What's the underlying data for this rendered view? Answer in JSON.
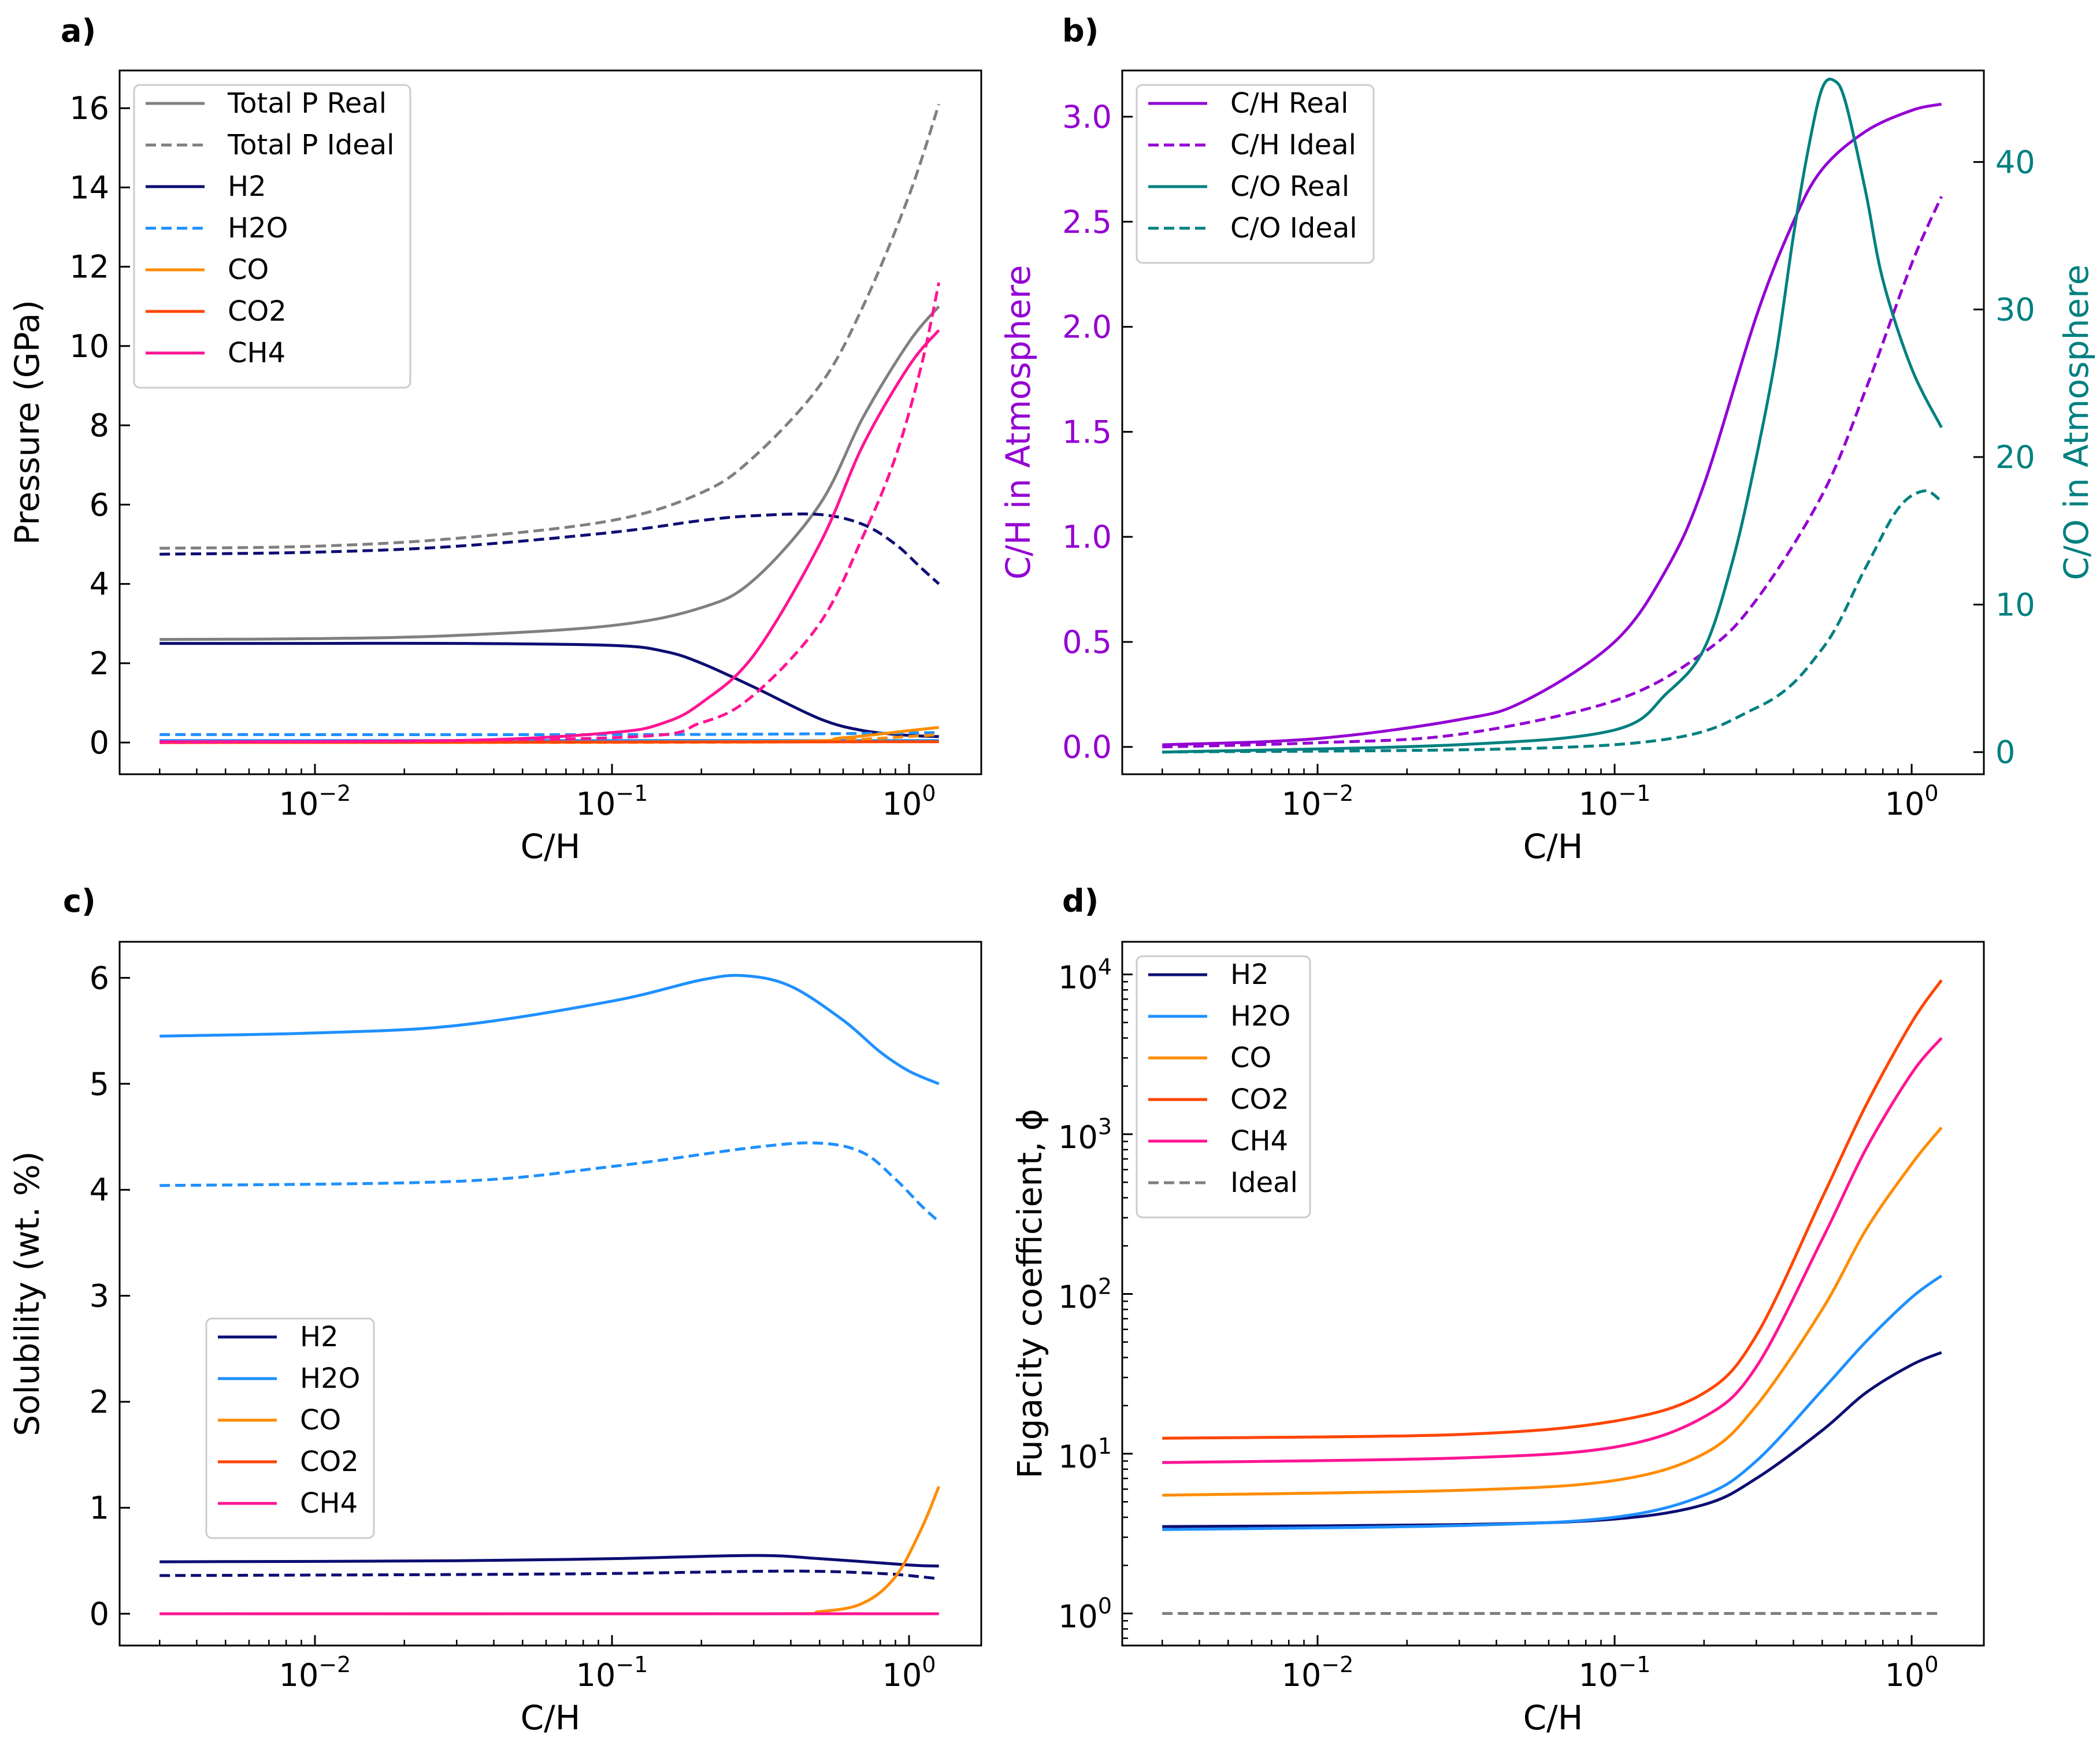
{
  "figure": {
    "panel_labels": [
      "a)",
      "b)",
      "c)",
      "d)"
    ]
  },
  "colors": {
    "total": "#808080",
    "H2": "#0d0d73",
    "H2O": "#1e90ff",
    "CO": "#ff8c00",
    "CO2": "#ff4500",
    "CH4": "#ff1493",
    "ch_ratio": "#9400d3",
    "co_ratio": "#008080",
    "ideal": "#808080"
  },
  "chart_data": [
    {
      "panel": "a)",
      "type": "line",
      "xscale": "log",
      "xlabel": "C/H",
      "ylabel": "Pressure (GPa)",
      "xlim": [
        0.0022,
        1.75
      ],
      "ylim": [
        -0.8,
        16.95
      ],
      "xticks": [
        {
          "v": 0.01,
          "b": "10",
          "e": "−2"
        },
        {
          "v": 0.1,
          "b": "10",
          "e": "−1"
        },
        {
          "v": 1,
          "b": "10",
          "e": "0"
        }
      ],
      "yticks": [
        0,
        2,
        4,
        6,
        8,
        10,
        12,
        14,
        16
      ],
      "legend": {
        "position": "upper-left",
        "entries": [
          "Total P Real",
          "Total P Ideal",
          "H2",
          "H2O",
          "CO",
          "CO2",
          "CH4"
        ]
      },
      "series": [
        {
          "name": "Total P Real",
          "color_key": "total",
          "dash": false,
          "x": [
            0.003,
            0.01,
            0.03,
            0.1,
            0.2,
            0.3,
            0.5,
            0.7,
            1.0,
            1.26
          ],
          "y": [
            2.6,
            2.62,
            2.7,
            2.95,
            3.4,
            4.1,
            6.0,
            8.2,
            10.1,
            11.0
          ]
        },
        {
          "name": "Total P Ideal",
          "color_key": "total",
          "dash": true,
          "x": [
            0.003,
            0.01,
            0.03,
            0.1,
            0.2,
            0.3,
            0.5,
            0.7,
            1.0,
            1.26
          ],
          "y": [
            4.9,
            4.95,
            5.15,
            5.6,
            6.3,
            7.2,
            9.0,
            11.0,
            13.8,
            16.1
          ]
        },
        {
          "name": "H2 Real",
          "color_key": "H2",
          "dash": false,
          "x": [
            0.003,
            0.01,
            0.03,
            0.1,
            0.15,
            0.2,
            0.3,
            0.5,
            0.7,
            1.0,
            1.26
          ],
          "y": [
            2.5,
            2.5,
            2.5,
            2.45,
            2.3,
            2.0,
            1.4,
            0.6,
            0.3,
            0.18,
            0.15
          ]
        },
        {
          "name": "H2 Ideal",
          "color_key": "H2",
          "dash": true,
          "x": [
            0.003,
            0.01,
            0.03,
            0.1,
            0.2,
            0.3,
            0.5,
            0.7,
            0.9,
            1.1,
            1.26
          ],
          "y": [
            4.75,
            4.8,
            4.95,
            5.3,
            5.6,
            5.72,
            5.75,
            5.5,
            5.0,
            4.4,
            4.0
          ]
        },
        {
          "name": "H2O Ideal",
          "color_key": "H2O",
          "dash": true,
          "x": [
            0.003,
            0.1,
            0.5,
            1.26
          ],
          "y": [
            0.2,
            0.2,
            0.22,
            0.25
          ]
        },
        {
          "name": "H2O Real",
          "color_key": "H2O",
          "dash": false,
          "x": [
            0.003,
            0.1,
            1.26
          ],
          "y": [
            0.05,
            0.05,
            0.05
          ]
        },
        {
          "name": "CO Real",
          "color_key": "CO",
          "dash": false,
          "x": [
            0.003,
            0.3,
            0.6,
            1.0,
            1.26
          ],
          "y": [
            0.0,
            0.02,
            0.12,
            0.3,
            0.38
          ]
        },
        {
          "name": "CO Ideal",
          "color_key": "CO",
          "dash": true,
          "x": [
            0.003,
            0.3,
            0.6,
            1.0,
            1.26
          ],
          "y": [
            0.0,
            0.01,
            0.06,
            0.15,
            0.2
          ]
        },
        {
          "name": "CO2 Real",
          "color_key": "CO2",
          "dash": false,
          "x": [
            0.003,
            1.26
          ],
          "y": [
            0.0,
            0.02
          ]
        },
        {
          "name": "CH4 Real",
          "color_key": "CH4",
          "dash": false,
          "x": [
            0.003,
            0.03,
            0.1,
            0.15,
            0.2,
            0.3,
            0.5,
            0.7,
            1.0,
            1.26
          ],
          "y": [
            0.02,
            0.05,
            0.25,
            0.5,
            1.0,
            2.2,
            5.0,
            7.5,
            9.5,
            10.4
          ]
        },
        {
          "name": "CH4 Ideal",
          "color_key": "CH4",
          "dash": true,
          "x": [
            0.003,
            0.1,
            0.2,
            0.3,
            0.5,
            0.7,
            0.9,
            1.1,
            1.26
          ],
          "y": [
            0.0,
            0.12,
            0.5,
            1.2,
            3.0,
            5.2,
            7.2,
            9.5,
            11.6
          ]
        }
      ]
    },
    {
      "panel": "b)",
      "type": "line",
      "xscale": "log",
      "xlabel": "C/H",
      "ylabel": "C/H in Atmosphere",
      "ylabel_right": "C/O in Atmosphere",
      "xlim": [
        0.0022,
        1.75
      ],
      "ylim": [
        -0.13,
        3.22
      ],
      "ylim_right": [
        -1.5,
        46.2
      ],
      "xticks": [
        {
          "v": 0.01,
          "b": "10",
          "e": "−2"
        },
        {
          "v": 0.1,
          "b": "10",
          "e": "−1"
        },
        {
          "v": 1,
          "b": "10",
          "e": "0"
        }
      ],
      "yticks": [
        "0.0",
        "0.5",
        "1.0",
        "1.5",
        "2.0",
        "2.5",
        "3.0"
      ],
      "yticks_right": [
        0,
        10,
        20,
        30,
        40
      ],
      "legend": {
        "position": "upper-left",
        "entries": [
          "C/H Real",
          "C/H Ideal",
          "C/O Real",
          "C/O Ideal"
        ]
      },
      "series": [
        {
          "name": "C/H Real",
          "axis": "left",
          "color_key": "ch_ratio",
          "dash": false,
          "x": [
            0.003,
            0.01,
            0.03,
            0.05,
            0.1,
            0.15,
            0.2,
            0.3,
            0.4,
            0.5,
            0.7,
            1.0,
            1.26
          ],
          "y": [
            0.01,
            0.04,
            0.13,
            0.22,
            0.5,
            0.85,
            1.25,
            2.05,
            2.5,
            2.75,
            2.93,
            3.03,
            3.06
          ]
        },
        {
          "name": "C/H Ideal",
          "axis": "left",
          "color_key": "ch_ratio",
          "dash": true,
          "x": [
            0.003,
            0.01,
            0.03,
            0.1,
            0.2,
            0.3,
            0.5,
            0.7,
            1.0,
            1.26
          ],
          "y": [
            0.0,
            0.02,
            0.06,
            0.22,
            0.45,
            0.7,
            1.2,
            1.7,
            2.3,
            2.62
          ]
        },
        {
          "name": "C/O Real",
          "axis": "right",
          "color_key": "co_ratio",
          "dash": false,
          "x": [
            0.003,
            0.03,
            0.1,
            0.15,
            0.2,
            0.25,
            0.3,
            0.35,
            0.4,
            0.45,
            0.5,
            0.55,
            0.6,
            0.7,
            0.8,
            1.0,
            1.26
          ],
          "y": [
            0.0,
            0.5,
            1.5,
            4.0,
            7.0,
            13.0,
            20.0,
            27.0,
            35.0,
            41.0,
            45.0,
            45.5,
            44.0,
            38.0,
            32.0,
            26.0,
            22.0
          ]
        },
        {
          "name": "C/O Ideal",
          "axis": "right",
          "color_key": "co_ratio",
          "dash": true,
          "x": [
            0.003,
            0.1,
            0.3,
            0.5,
            0.7,
            0.9,
            1.1,
            1.26
          ],
          "y": [
            0.0,
            0.5,
            3.0,
            7.0,
            12.5,
            16.5,
            17.7,
            17.0
          ]
        }
      ]
    },
    {
      "panel": "c)",
      "type": "line",
      "xscale": "log",
      "xlabel": "C/H",
      "ylabel": "Solubility (wt. %)",
      "xlim": [
        0.0022,
        1.75
      ],
      "ylim": [
        -0.3,
        6.34
      ],
      "xticks": [
        {
          "v": 0.01,
          "b": "10",
          "e": "−2"
        },
        {
          "v": 0.1,
          "b": "10",
          "e": "−1"
        },
        {
          "v": 1,
          "b": "10",
          "e": "0"
        }
      ],
      "yticks": [
        0,
        1,
        2,
        3,
        4,
        5,
        6
      ],
      "legend": {
        "position": "lower-left",
        "entries": [
          "H2",
          "H2O",
          "CO",
          "CO2",
          "CH4"
        ]
      },
      "series": [
        {
          "name": "H2O Real",
          "color_key": "H2O",
          "dash": false,
          "x": [
            0.003,
            0.01,
            0.03,
            0.1,
            0.2,
            0.28,
            0.4,
            0.6,
            0.8,
            1.0,
            1.26
          ],
          "y": [
            5.45,
            5.48,
            5.55,
            5.78,
            5.98,
            6.02,
            5.92,
            5.6,
            5.3,
            5.12,
            5.0
          ]
        },
        {
          "name": "H2O Ideal",
          "color_key": "H2O",
          "dash": true,
          "x": [
            0.003,
            0.03,
            0.1,
            0.3,
            0.5,
            0.7,
            0.9,
            1.1,
            1.26
          ],
          "y": [
            4.04,
            4.08,
            4.22,
            4.4,
            4.44,
            4.35,
            4.1,
            3.85,
            3.7
          ]
        },
        {
          "name": "H2 Real",
          "color_key": "H2",
          "dash": false,
          "x": [
            0.003,
            0.03,
            0.1,
            0.3,
            0.5,
            1.0,
            1.26
          ],
          "y": [
            0.49,
            0.5,
            0.52,
            0.55,
            0.52,
            0.46,
            0.45
          ]
        },
        {
          "name": "H2 Ideal",
          "color_key": "H2",
          "dash": true,
          "x": [
            0.003,
            0.03,
            0.1,
            0.3,
            0.5,
            0.8,
            1.0,
            1.26
          ],
          "y": [
            0.36,
            0.37,
            0.38,
            0.4,
            0.4,
            0.38,
            0.36,
            0.33
          ]
        },
        {
          "name": "CO Real",
          "color_key": "CO",
          "dash": false,
          "x": [
            0.003,
            0.3,
            0.5,
            0.7,
            0.9,
            1.1,
            1.26
          ],
          "y": [
            0.0,
            0.0,
            0.02,
            0.1,
            0.35,
            0.8,
            1.2
          ]
        },
        {
          "name": "CO2 Real",
          "color_key": "CO2",
          "dash": false,
          "x": [
            0.003,
            1.26
          ],
          "y": [
            0.0,
            0.0
          ]
        },
        {
          "name": "CH4 Real",
          "color_key": "CH4",
          "dash": false,
          "x": [
            0.003,
            1.26
          ],
          "y": [
            0.0,
            0.0
          ]
        }
      ]
    },
    {
      "panel": "d)",
      "type": "line",
      "xscale": "log",
      "yscale": "log",
      "xlabel": "C/H",
      "ylabel": "Fugacity coefficient, ϕ",
      "xlim": [
        0.0022,
        1.75
      ],
      "ylim": [
        0.63,
        16000
      ],
      "xticks": [
        {
          "v": 0.01,
          "b": "10",
          "e": "−2"
        },
        {
          "v": 0.1,
          "b": "10",
          "e": "−1"
        },
        {
          "v": 1,
          "b": "10",
          "e": "0"
        }
      ],
      "yticks": [
        {
          "v": 1,
          "b": "10",
          "e": "0"
        },
        {
          "v": 10,
          "b": "10",
          "e": "1"
        },
        {
          "v": 100,
          "b": "10",
          "e": "2"
        },
        {
          "v": 1000,
          "b": "10",
          "e": "3"
        },
        {
          "v": 10000,
          "b": "10",
          "e": "4"
        }
      ],
      "legend": {
        "position": "upper-left",
        "entries": [
          "H2",
          "H2O",
          "CO",
          "CO2",
          "CH4",
          "Ideal"
        ]
      },
      "series": [
        {
          "name": "H2",
          "color_key": "H2",
          "dash": false,
          "x": [
            0.003,
            0.03,
            0.1,
            0.2,
            0.3,
            0.5,
            0.7,
            1.0,
            1.26
          ],
          "y": [
            3.5,
            3.6,
            3.9,
            4.8,
            7.0,
            14.0,
            24.0,
            36.0,
            43.0
          ]
        },
        {
          "name": "H2O",
          "color_key": "H2O",
          "dash": false,
          "x": [
            0.003,
            0.03,
            0.1,
            0.2,
            0.3,
            0.5,
            0.7,
            1.0,
            1.26
          ],
          "y": [
            3.35,
            3.55,
            4.0,
            5.5,
            9.0,
            25.0,
            50.0,
            95.0,
            130.0
          ]
        },
        {
          "name": "CO",
          "color_key": "CO",
          "dash": false,
          "x": [
            0.003,
            0.03,
            0.1,
            0.2,
            0.3,
            0.5,
            0.7,
            1.0,
            1.26
          ],
          "y": [
            5.5,
            5.9,
            6.8,
            10.0,
            20.0,
            80.0,
            250.0,
            650.0,
            1100.0
          ]
        },
        {
          "name": "CO2",
          "color_key": "CO2",
          "dash": false,
          "x": [
            0.003,
            0.03,
            0.1,
            0.2,
            0.3,
            0.5,
            0.7,
            1.0,
            1.26
          ],
          "y": [
            12.5,
            13.2,
            16.0,
            24.0,
            55.0,
            400.0,
            1500.0,
            5000.0,
            9200.0
          ]
        },
        {
          "name": "CH4",
          "color_key": "CH4",
          "dash": false,
          "x": [
            0.003,
            0.03,
            0.1,
            0.2,
            0.3,
            0.5,
            0.7,
            1.0,
            1.26
          ],
          "y": [
            8.8,
            9.4,
            11.0,
            17.0,
            35.0,
            220.0,
            800.0,
            2400.0,
            4000.0
          ]
        },
        {
          "name": "Ideal",
          "color_key": "ideal",
          "dash": true,
          "x": [
            0.003,
            1.26
          ],
          "y": [
            1.0,
            1.0
          ]
        }
      ]
    }
  ]
}
